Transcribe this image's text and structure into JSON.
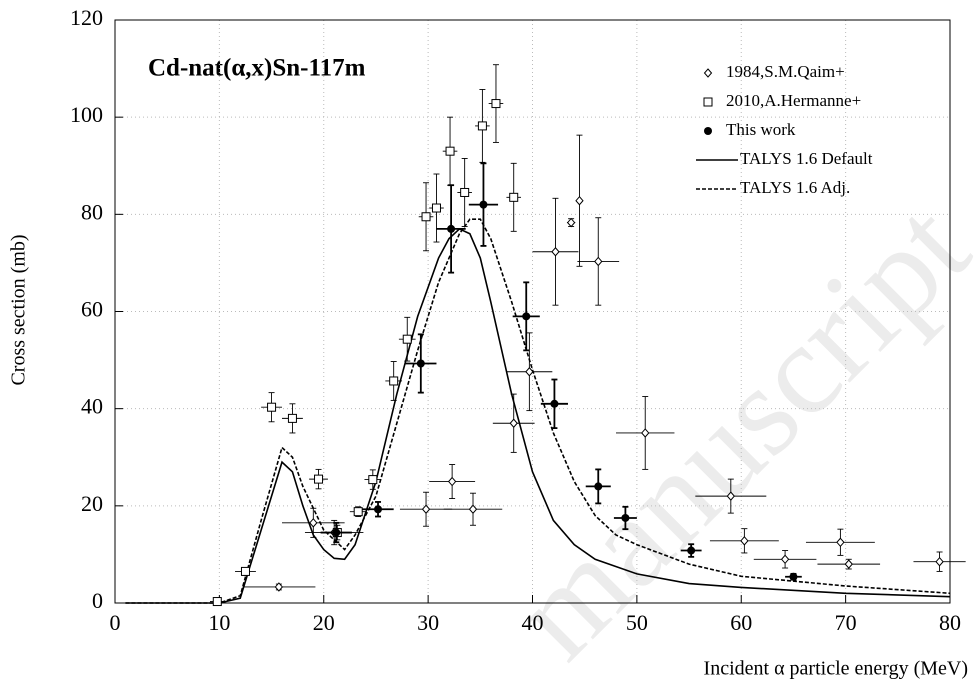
{
  "chart_data": {
    "type": "scatter",
    "title": "Cd-nat(α,x)Sn-117m",
    "x_label": "Incident α particle energy (MeV)",
    "y_label": "Cross section (mb)",
    "watermark": "manuscript",
    "xlim": [
      0,
      80
    ],
    "ylim": [
      0,
      120
    ],
    "xticks": [
      0,
      10,
      20,
      30,
      40,
      50,
      60,
      70,
      80
    ],
    "yticks": [
      0,
      20,
      40,
      60,
      80,
      100,
      120
    ],
    "grid": true,
    "legend": "upper right",
    "series": [
      {
        "name": "1984,S.M.Qaim+",
        "marker": "diamond",
        "color": "#000000",
        "x": [
          15.7,
          19,
          21,
          29.8,
          32.3,
          34.3,
          38.2,
          39.7,
          42.2,
          43.7,
          44.5,
          46.3,
          50.8,
          59,
          60.3,
          64.2,
          69.5,
          70.3,
          79
        ],
        "values": [
          3.3,
          16.5,
          14.5,
          19.3,
          25,
          19.3,
          37,
          47.6,
          72.3,
          78.3,
          82.8,
          70.3,
          35,
          22,
          12.8,
          9,
          12.5,
          8,
          8.5
        ],
        "xerr": [
          3.5,
          3,
          2.8,
          2.5,
          2.2,
          2.8,
          2,
          2.2,
          2.2,
          0.4,
          0.3,
          2,
          2.8,
          3.4,
          3.3,
          3,
          3.3,
          3,
          2.5
        ],
        "yerr": [
          0.6,
          3,
          2.5,
          3.5,
          3.5,
          3.3,
          6,
          8,
          11,
          0.8,
          13.5,
          9,
          7.5,
          3.5,
          2.5,
          1.8,
          2.7,
          1,
          2
        ]
      },
      {
        "name": "2010,A.Hermanne+",
        "marker": "square",
        "color": "#000000",
        "x": [
          9.8,
          12.5,
          15,
          17,
          19.5,
          21.3,
          23.3,
          24.7,
          26.7,
          28,
          29.8,
          30.8,
          32.1,
          33.5,
          35.2,
          36.5,
          38.2
        ],
        "values": [
          0.3,
          6.5,
          40.3,
          38,
          25.5,
          14.5,
          18.8,
          25.4,
          45.7,
          54.3,
          79.5,
          81.3,
          93,
          84.5,
          98.2,
          102.8,
          83.5
        ],
        "xerr": [
          0.7,
          1,
          1,
          1,
          0.9,
          0.9,
          0.8,
          0.8,
          0.8,
          0.8,
          0.7,
          0.7,
          0.7,
          0.7,
          0.7,
          0.7,
          0.7
        ],
        "yerr": [
          0.3,
          0.8,
          3,
          3,
          2,
          1.5,
          1,
          2,
          4,
          4.5,
          7,
          7,
          7,
          7,
          7.5,
          8,
          7
        ]
      },
      {
        "name": "This work",
        "marker": "circle",
        "color": "#000000",
        "x": [
          21.2,
          25.2,
          29.3,
          32.2,
          35.3,
          39.4,
          42.1,
          46.3,
          48.9,
          55.2,
          65
        ],
        "values": [
          14.5,
          19.3,
          49.3,
          77,
          82,
          59,
          41,
          24,
          17.5,
          10.8,
          5.4
        ],
        "xerr": [
          1.5,
          1.5,
          1.5,
          1.4,
          1.4,
          1.3,
          1.3,
          1.2,
          1.1,
          1,
          0.8
        ],
        "yerr": [
          2,
          1.5,
          6,
          9,
          8.5,
          7,
          5,
          3.5,
          2.3,
          1.3,
          0.6
        ]
      }
    ],
    "lines": [
      {
        "name": "TALYS 1.6 Default",
        "dash": false,
        "color": "#000000",
        "x": [
          1,
          10,
          12,
          14,
          16,
          17,
          18,
          19,
          20,
          21,
          22,
          23,
          25,
          27,
          29,
          31,
          32,
          33,
          34,
          35,
          36,
          38,
          40,
          42,
          44,
          46,
          50,
          55,
          60,
          70,
          80
        ],
        "values": [
          0,
          0,
          1,
          15,
          29,
          27,
          20,
          14,
          11,
          9.2,
          9,
          12,
          25,
          43,
          59,
          71,
          75,
          77,
          76,
          71,
          62,
          43,
          27,
          17,
          12,
          9,
          6,
          4,
          3.2,
          2,
          1.3
        ]
      },
      {
        "name": "TALYS 1.6 Adj.",
        "dash": true,
        "color": "#000000",
        "x": [
          1,
          10,
          12,
          14,
          16,
          17,
          18,
          20,
          22,
          23,
          25,
          27,
          29,
          31,
          33,
          34,
          35,
          36,
          38,
          40,
          42,
          44,
          46,
          48,
          50,
          55,
          60,
          70,
          80
        ],
        "values": [
          0,
          0,
          1.5,
          17,
          32,
          30,
          24,
          15,
          11,
          14,
          22,
          37,
          52,
          66,
          76,
          79,
          79,
          75,
          62,
          48,
          35,
          25,
          18,
          14,
          12,
          8,
          5.5,
          3.5,
          2
        ]
      }
    ]
  }
}
